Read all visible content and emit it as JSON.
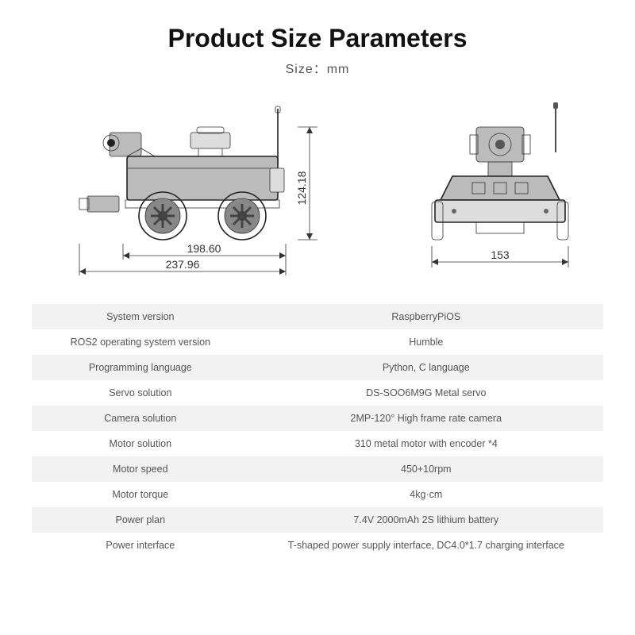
{
  "header": {
    "title": "Product Size Parameters",
    "subtitle": "Size：mm"
  },
  "dimensions": {
    "side_inner_width": "198.60",
    "side_outer_width": "237.96",
    "side_height": "124.18",
    "front_width": "153"
  },
  "diagram_style": {
    "line_color": "#333333",
    "body_fill": "#bbbbbb",
    "wheel_fill": "#888888",
    "light_fill": "#dddddd",
    "background": "#ffffff",
    "dim_font_size": 14
  },
  "specs_table": {
    "row_bg_odd": "#f2f2f2",
    "row_bg_even": "#ffffff",
    "text_color": "#555555",
    "font_size": 12.5,
    "rows": [
      {
        "label": "System version",
        "value": "RaspberryPiOS"
      },
      {
        "label": "ROS2 operating system version",
        "value": "Humble"
      },
      {
        "label": "Programming language",
        "value": "Python, C language"
      },
      {
        "label": "Servo solution",
        "value": "DS-SOO6M9G Metal servo"
      },
      {
        "label": "Camera solution",
        "value": "2MP-120° High frame rate camera"
      },
      {
        "label": "Motor solution",
        "value": "310 metal motor with encoder *4"
      },
      {
        "label": "Motor speed",
        "value": "450+10rpm"
      },
      {
        "label": "Motor torque",
        "value": "4kg·cm"
      },
      {
        "label": "Power plan",
        "value": "7.4V 2000mAh 2S lithium battery"
      },
      {
        "label": "Power interface",
        "value": "T-shaped power supply interface, DC4.0*1.7 charging interface"
      }
    ]
  }
}
